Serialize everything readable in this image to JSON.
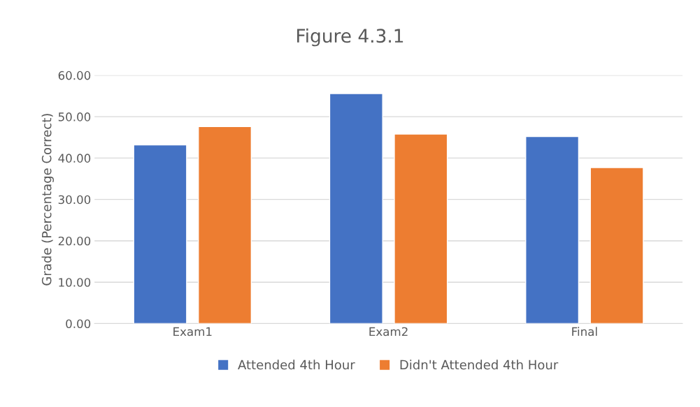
{
  "chart_data": {
    "type": "bar",
    "title": "Figure 4.3.1",
    "ylabel": "Grade (Percentage Correct)",
    "categories": [
      "Exam1",
      "Exam2",
      "Final"
    ],
    "series": [
      {
        "name": "Attended 4th Hour",
        "color": "#4472c4",
        "values": [
          43.2,
          55.6,
          45.2
        ]
      },
      {
        "name": "Didn't Attended 4th Hour",
        "color": "#ed7d31",
        "values": [
          47.6,
          45.8,
          37.7
        ]
      }
    ],
    "ylim": [
      0,
      60
    ],
    "yticks": [
      {
        "value": 0,
        "label": "0.00"
      },
      {
        "value": 10,
        "label": "10.00"
      },
      {
        "value": 20,
        "label": "20.00"
      },
      {
        "value": 30,
        "label": "30.00"
      },
      {
        "value": 40,
        "label": "40.00"
      },
      {
        "value": 50,
        "label": "50.00"
      },
      {
        "value": 60,
        "label": "60.00"
      }
    ],
    "grid": "y",
    "legend": "bottom"
  }
}
